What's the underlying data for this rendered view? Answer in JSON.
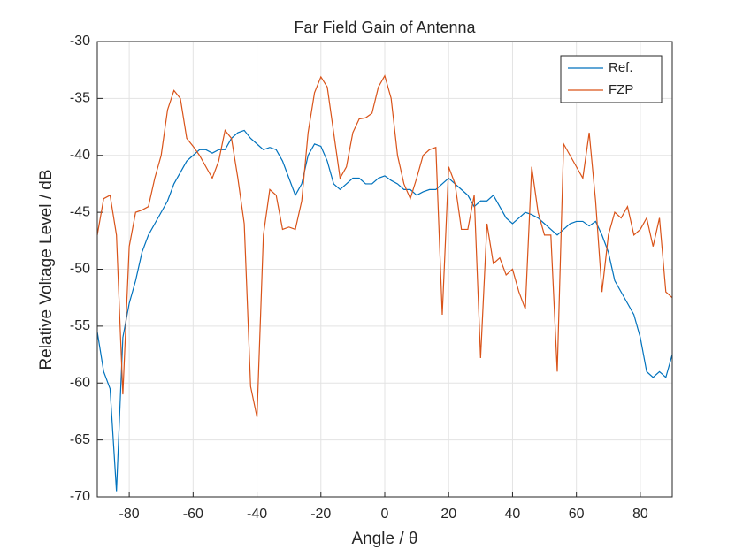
{
  "chart_data": {
    "type": "line",
    "title": "Far Field Gain of Antenna",
    "x_label": "Angle / θ",
    "y_label": "Relative Voltage Level / dB",
    "x": [
      -90,
      -88,
      -86,
      -84,
      -82,
      -80,
      -78,
      -76,
      -74,
      -72,
      -70,
      -68,
      -66,
      -64,
      -62,
      -60,
      -58,
      -56,
      -54,
      -52,
      -50,
      -48,
      -46,
      -44,
      -42,
      -40,
      -38,
      -36,
      -34,
      -32,
      -30,
      -28,
      -26,
      -24,
      -22,
      -20,
      -18,
      -16,
      -14,
      -12,
      -10,
      -8,
      -6,
      -4,
      -2,
      0,
      2,
      4,
      6,
      8,
      10,
      12,
      14,
      16,
      18,
      20,
      22,
      24,
      26,
      28,
      30,
      32,
      34,
      36,
      38,
      40,
      42,
      44,
      46,
      48,
      50,
      52,
      54,
      56,
      58,
      60,
      62,
      64,
      66,
      68,
      70,
      72,
      74,
      76,
      78,
      80,
      82,
      84,
      86,
      88,
      90
    ],
    "series": [
      {
        "name": "Ref.",
        "color": "#0072bd",
        "values": [
          -55.5,
          -59,
          -60.5,
          -69.5,
          -56,
          -53,
          -51,
          -48.5,
          -47,
          -46,
          -45,
          -44,
          -42.5,
          -41.5,
          -40.5,
          -40,
          -39.5,
          -39.5,
          -39.8,
          -39.5,
          -39.5,
          -38.5,
          -38,
          -37.8,
          -38.5,
          -39,
          -39.5,
          -39.3,
          -39.5,
          -40.5,
          -42,
          -43.5,
          -42.5,
          -40,
          -39,
          -39.2,
          -40.5,
          -42.5,
          -43,
          -42.5,
          -42,
          -42,
          -42.5,
          -42.5,
          -42,
          -41.8,
          -42.2,
          -42.5,
          -43,
          -43,
          -43.5,
          -43.2,
          -43,
          -43,
          -42.5,
          -42,
          -42.5,
          -43,
          -43.5,
          -44.5,
          -44,
          -44,
          -43.5,
          -44.5,
          -45.5,
          -46,
          -45.5,
          -45,
          -45.2,
          -45.5,
          -46,
          -46.5,
          -47,
          -46.5,
          -46,
          -45.8,
          -45.8,
          -46.2,
          -45.8,
          -47,
          -48.5,
          -51,
          -52,
          -53,
          -54,
          -56,
          -59,
          -59.5,
          -59,
          -59.5,
          -57.5
        ]
      },
      {
        "name": "FZP",
        "color": "#d95319",
        "values": [
          -47,
          -43.8,
          -43.5,
          -47,
          -61,
          -48,
          -45,
          -44.8,
          -44.5,
          -42,
          -40,
          -36,
          -34.3,
          -35,
          -38.5,
          -39.2,
          -40,
          -41,
          -42,
          -40.5,
          -37.8,
          -38.5,
          -42,
          -46,
          -60.3,
          -63,
          -47,
          -43,
          -43.5,
          -46.5,
          -46.3,
          -46.5,
          -44,
          -38,
          -34.5,
          -33.1,
          -34,
          -38,
          -42,
          -41,
          -38,
          -36.8,
          -36.7,
          -36.3,
          -34,
          -33,
          -35,
          -40,
          -42.5,
          -43.8,
          -42,
          -40,
          -39.5,
          -39.3,
          -54,
          -41,
          -42.5,
          -46.5,
          -46.5,
          -43.5,
          -57.8,
          -46,
          -49.5,
          -49,
          -50.5,
          -50,
          -52,
          -53.5,
          -41,
          -45,
          -47,
          -47,
          -59,
          -39,
          -40,
          -41,
          -42,
          -38,
          -44,
          -52,
          -47,
          -45,
          -45.5,
          -44.5,
          -47,
          -46.5,
          -45.5,
          -48,
          -45.5,
          -52,
          -52.5
        ]
      }
    ],
    "xlim": [
      -90,
      90
    ],
    "xticks": [
      -80,
      -60,
      -40,
      -20,
      0,
      20,
      40,
      60,
      80
    ],
    "ylim": [
      -70,
      -30
    ],
    "yticks": [
      -70,
      -65,
      -60,
      -55,
      -50,
      -45,
      -40,
      -35,
      -30
    ],
    "grid": true,
    "legend": "northeast"
  }
}
